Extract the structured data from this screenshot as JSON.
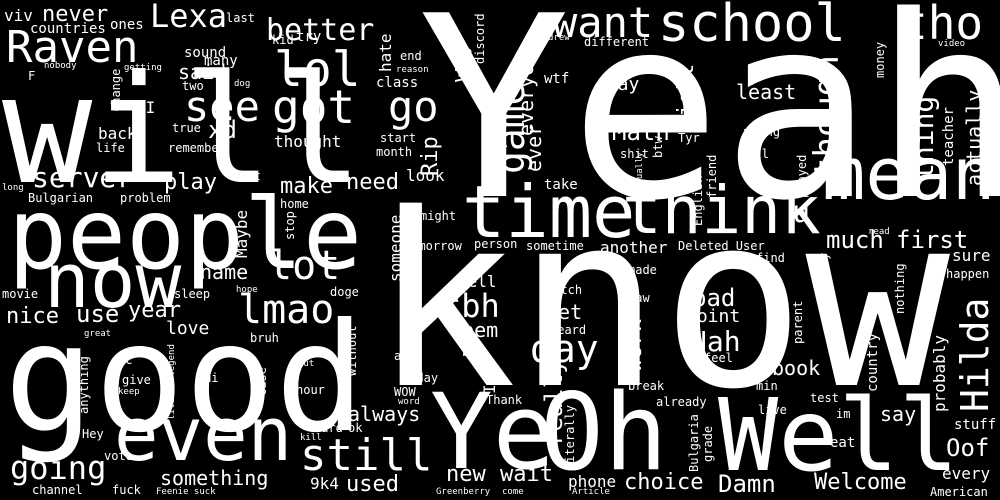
{
  "cloud": {
    "background_color": "#000000",
    "text_color": "#ffffff",
    "words": {
      "yeah": "Yeah",
      "know": "know",
      "will": "will",
      "good": "good",
      "people": "people",
      "now": "now",
      "even": "even",
      "well": "Well",
      "oh": "Oh",
      "ye": "Ye",
      "time": "time",
      "think": "think",
      "mean": "mean",
      "school": "school",
      "want": "want",
      "tho": "tho",
      "raven": "Raven",
      "lol": "lol",
      "got": "got",
      "see": "see",
      "go": "go",
      "better": "better",
      "lexa": "Lexa",
      "never": "never",
      "viv": "viv",
      "ones": "ones",
      "last": "last",
      "countries": "countries",
      "sound": "sound",
      "many": "many",
      "kid": "kid",
      "try": "try",
      "hate": "hate",
      "end": "end",
      "reason": "reason",
      "discord": "discord",
      "drew": "drew",
      "different": "different",
      "money": "money",
      "video": "video",
      "nobody": "nobody",
      "f": "F",
      "change": "change",
      "getting": "getting",
      "two": "two",
      "dog": "dog",
      "said": "said",
      "class": "class",
      "way": "way",
      "wtf": "wtf",
      "okay": "okay",
      "li": "LI",
      "xd": "xd",
      "true": "true",
      "back": "back",
      "life": "life",
      "remember": "remember",
      "thought": "thought",
      "start": "start",
      "month": "month",
      "rip": "Rip",
      "everything": "everything",
      "btw": "btw",
      "tyr": "Tyr",
      "wrong": "wrong",
      "call": "call",
      "right": "right",
      "least": "least",
      "math": "Math",
      "shit": "shit",
      "teacher": "teacher",
      "summer": "summer",
      "thing": "thing",
      "actually": "actually",
      "though": "though",
      "game": "game",
      "ever": "ever",
      "everyone": "everyone",
      "server": "server",
      "play": "play",
      "need": "need",
      "look": "look",
      "take": "take",
      "usually": "usually",
      "english": "English",
      "friend": "friend",
      "played": "played",
      "long": "long",
      "best": "best",
      "home": "home",
      "bulgarian": "Bulgarian",
      "problem": "problem",
      "make": "make",
      "might": "might",
      "u": "u",
      "read": "read",
      "maybe": "Maybe",
      "stop": "stop",
      "someone": "someone",
      "tomorrow": "tomorrow",
      "person": "person",
      "sometime": "sometime",
      "another": "another",
      "deleted_user": "Deleted User",
      "much": "much",
      "first": "first",
      "sure": "sure",
      "name": "name",
      "lot": "lot",
      "made": "made",
      "find": "find",
      "anyway": "anyway",
      "happen": "happen",
      "movie": "movie",
      "hope": "hope",
      "doge": "doge",
      "tell": "tell",
      "watch": "watch",
      "nothing": "nothing",
      "sleep": "sleep",
      "tbh": "tbh",
      "year": "year",
      "nice": "nice",
      "use": "use",
      "lmao": "lmao",
      "bad": "bad",
      "let": "Let",
      "saw": "saw",
      "point": "point",
      "parent": "parent",
      "hilda": "Hilda",
      "love": "love",
      "seem": "seem",
      "heard": "heard",
      "great": "great",
      "bruh": "bruh",
      "nah": "Nah",
      "book": "book",
      "say": "say",
      "day": "day",
      "pc": "pc",
      "put": "put",
      "app": "app",
      "big": "big",
      "feel": "feel",
      "country": "country",
      "give": "give",
      "hi": "Hi",
      "literal_legend": "literal legend",
      "without": "without",
      "today": "today",
      "idk": "Idk",
      "work": "work",
      "keep": "keep",
      "case": "case",
      "wow": "WOW",
      "break": "break",
      "min": "min",
      "probably": "probably",
      "hour": "hour",
      "really": "really",
      "anything": "anything",
      "word": "word",
      "thank": "Thank",
      "already": "already",
      "test": "test",
      "im": "im",
      "always": "always",
      "hey": "Hey",
      "kill": "kill",
      "hard": "hard",
      "ok": "ok",
      "literally": "literally",
      "live": "live",
      "damn": "Damn",
      "stuff": "stuff",
      "vote": "vote",
      "still": "still",
      "bulgaria": "Bulgaria",
      "grade": "grade",
      "eat": "eat",
      "oof": "Oof",
      "going": "going",
      "something": "something",
      "new": "new",
      "wait": "wait",
      "choice": "choice",
      "welcome": "Welcome",
      "every": "every",
      "9k4": "9k4",
      "used": "used",
      "phone": "phone",
      "channel": "channel",
      "fuck": "fuck",
      "feenie_suck": "Feenie suck",
      "greenberry": "Greenberry",
      "come": "come",
      "article": "Article",
      "american": "American"
    }
  }
}
